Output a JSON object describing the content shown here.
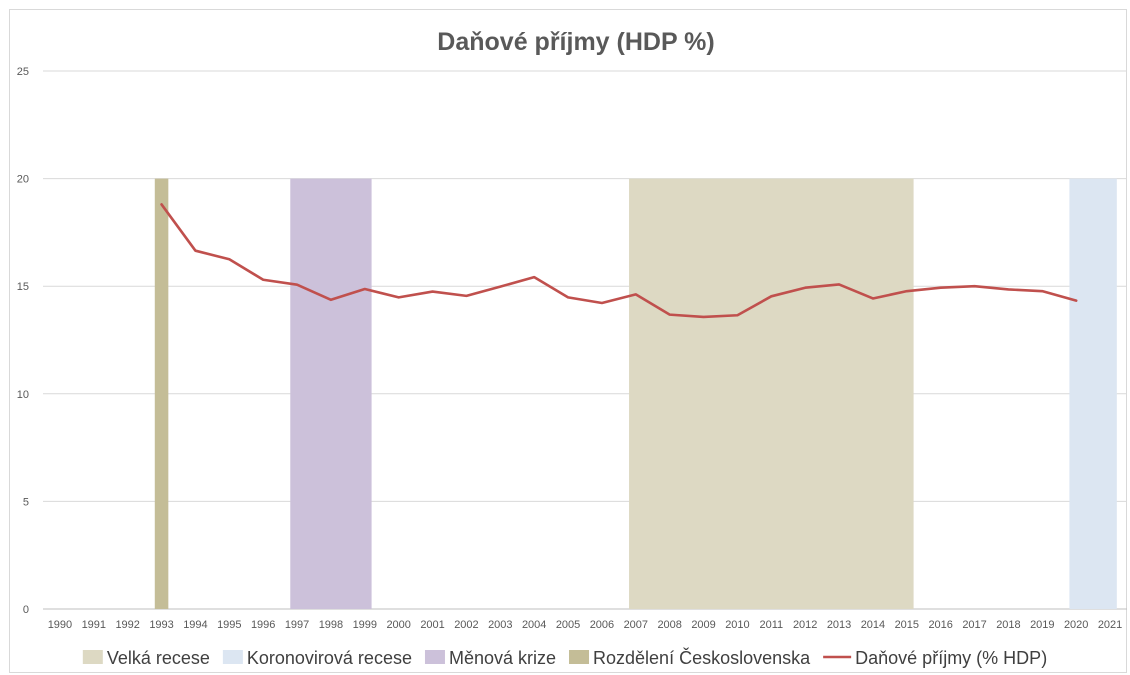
{
  "chart_data": {
    "type": "line",
    "title": "Daňové příjmy (HDP %)",
    "xlabel": "",
    "ylabel": "",
    "categories": [
      "1990",
      "1991",
      "1992",
      "1993",
      "1994",
      "1995",
      "1996",
      "1997",
      "1998",
      "1999",
      "2000",
      "2001",
      "2002",
      "2003",
      "2004",
      "2005",
      "2006",
      "2007",
      "2008",
      "2009",
      "2010",
      "2011",
      "2012",
      "2013",
      "2014",
      "2015",
      "2016",
      "2017",
      "2018",
      "2019",
      "2020",
      "2021"
    ],
    "yticks": [
      "0",
      "5",
      "10",
      "15",
      "20",
      "25"
    ],
    "ylim": [
      0,
      25
    ],
    "grid": true,
    "legend_position": "bottom",
    "bands": [
      {
        "name": "Velká recese",
        "from": "2007",
        "to": "2015",
        "value": 20,
        "color": "#ddd9c3"
      },
      {
        "name": "Koronovirová recese",
        "from": "2020",
        "to": "2021",
        "value": 20,
        "color": "#dce6f2"
      },
      {
        "name": "Měnová krize",
        "from": "1997",
        "to": "1999",
        "value": 20,
        "color": "#ccc1da"
      },
      {
        "name": "Rozdělení Československa",
        "from": "1993",
        "to": "1993",
        "value": 20,
        "color": "#c4bd97"
      }
    ],
    "series": [
      {
        "name": "Daňové příjmy (% HDP)",
        "color": "#c0504d",
        "values": [
          null,
          null,
          null,
          18.8,
          16.65,
          16.25,
          15.3,
          15.07,
          14.37,
          14.87,
          14.48,
          14.75,
          14.55,
          14.98,
          15.42,
          14.48,
          14.22,
          14.62,
          13.68,
          13.57,
          13.65,
          14.53,
          14.93,
          15.08,
          14.43,
          14.77,
          14.93,
          15.0,
          14.85,
          14.77,
          14.33,
          null
        ]
      }
    ]
  }
}
